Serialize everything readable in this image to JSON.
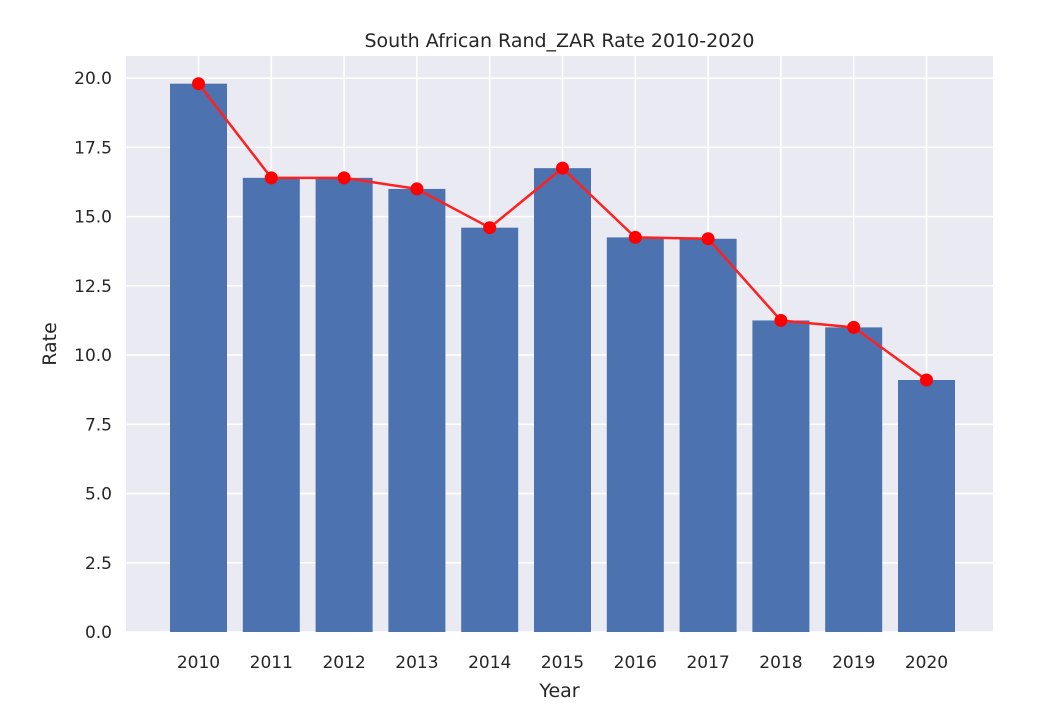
{
  "chart_data": {
    "type": "bar",
    "title": "South African Rand_ZAR Rate 2010-2020",
    "xlabel": "Year",
    "ylabel": "Rate",
    "categories": [
      "2010",
      "2011",
      "2012",
      "2013",
      "2014",
      "2015",
      "2016",
      "2017",
      "2018",
      "2019",
      "2020"
    ],
    "values": [
      19.8,
      16.4,
      16.4,
      16.0,
      14.6,
      16.75,
      14.25,
      14.2,
      11.25,
      11.0,
      9.1
    ],
    "line_series": {
      "type": "line",
      "markers": true,
      "values": [
        19.8,
        16.4,
        16.4,
        16.0,
        14.6,
        16.75,
        14.25,
        14.2,
        11.25,
        11.0,
        9.1
      ]
    },
    "ylim": [
      0,
      20.8
    ],
    "yticks": [
      "0.0",
      "2.5",
      "5.0",
      "7.5",
      "10.0",
      "12.5",
      "15.0",
      "17.5",
      "20.0"
    ],
    "grid": true,
    "colors": {
      "background": "#eaeaf2",
      "grid": "#ffffff",
      "bar": "#4c72b0",
      "line": "#ff2020",
      "marker": "#ff0000"
    }
  }
}
